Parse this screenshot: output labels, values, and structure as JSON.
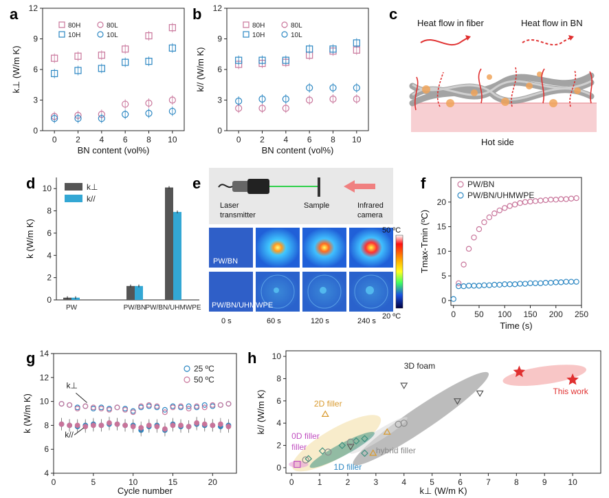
{
  "colors": {
    "pink": "#c8749a",
    "blue": "#2a86c2",
    "dark": "#555555",
    "cyan": "#33a7d4",
    "red": "#e03030",
    "orange": "#d99a2e",
    "gray": "#8a8a8a",
    "green": "#3a8f7d",
    "purple": "#c04fc0"
  },
  "panel_labels": [
    "a",
    "b",
    "c",
    "d",
    "e",
    "f",
    "g",
    "h"
  ],
  "panel_c": {
    "title_fiber": "Heat flow in fiber",
    "title_bn": "Heat flow in BN",
    "bottom": "Hot side"
  },
  "panel_e": {
    "laser": "Laser",
    "laser2": "transmitter",
    "sample": "Sample",
    "camera": "Infrared",
    "camera2": "camera",
    "row1": "PW/BN",
    "row2": "PW/BN/UHMWPE",
    "times": [
      "0 s",
      "60 s",
      "120 s",
      "240 s"
    ],
    "scale_max": "50 ºC",
    "scale_min": "20 ºC"
  },
  "chart_data": [
    {
      "id": "a",
      "type": "scatter",
      "xlabel": "BN content (vol%)",
      "ylabel": "k⊥ (W/m K)",
      "xlim": [
        -1,
        11
      ],
      "ylim": [
        0,
        12
      ],
      "xticks": [
        0,
        2,
        4,
        6,
        8,
        10
      ],
      "yticks": [
        0,
        3,
        6,
        9,
        12
      ],
      "legend": [
        "80H",
        "80L",
        "10H",
        "10L"
      ],
      "series": [
        {
          "name": "80H",
          "marker": "square",
          "color": "pink",
          "x": [
            0,
            2,
            4,
            6,
            8,
            10
          ],
          "y": [
            7.1,
            7.3,
            7.4,
            8.0,
            9.3,
            10.1
          ]
        },
        {
          "name": "80L",
          "marker": "circle",
          "color": "pink",
          "x": [
            0,
            2,
            4,
            6,
            8,
            10
          ],
          "y": [
            1.4,
            1.5,
            1.6,
            2.6,
            2.7,
            3.0
          ]
        },
        {
          "name": "10H",
          "marker": "square",
          "color": "blue",
          "x": [
            0,
            2,
            4,
            6,
            8,
            10
          ],
          "y": [
            5.6,
            5.9,
            6.1,
            6.7,
            6.8,
            8.1
          ]
        },
        {
          "name": "10L",
          "marker": "circle",
          "color": "blue",
          "x": [
            0,
            2,
            4,
            6,
            8,
            10
          ],
          "y": [
            1.2,
            1.2,
            1.2,
            1.6,
            1.7,
            1.9
          ]
        }
      ]
    },
    {
      "id": "b",
      "type": "scatter",
      "xlabel": "BN content (vol%)",
      "ylabel": "k// (W/m K)",
      "xlim": [
        -1,
        11
      ],
      "ylim": [
        0,
        12
      ],
      "xticks": [
        0,
        2,
        4,
        6,
        8,
        10
      ],
      "yticks": [
        0,
        3,
        6,
        9,
        12
      ],
      "legend": [
        "80H",
        "80L",
        "10H",
        "10L"
      ],
      "series": [
        {
          "name": "80H",
          "marker": "square",
          "color": "pink",
          "x": [
            0,
            2,
            4,
            6,
            8,
            10
          ],
          "y": [
            6.5,
            6.6,
            6.7,
            7.4,
            7.8,
            7.9
          ]
        },
        {
          "name": "80L",
          "marker": "circle",
          "color": "pink",
          "x": [
            0,
            2,
            4,
            6,
            8,
            10
          ],
          "y": [
            2.2,
            2.2,
            2.2,
            3.0,
            3.1,
            3.1
          ]
        },
        {
          "name": "10H",
          "marker": "square",
          "color": "blue",
          "x": [
            0,
            2,
            4,
            6,
            8,
            10
          ],
          "y": [
            6.9,
            6.9,
            6.9,
            8.0,
            8.0,
            8.6
          ]
        },
        {
          "name": "10L",
          "marker": "circle",
          "color": "blue",
          "x": [
            0,
            2,
            4,
            6,
            8,
            10
          ],
          "y": [
            2.9,
            3.1,
            3.1,
            4.2,
            4.2,
            4.2
          ]
        }
      ]
    },
    {
      "id": "d",
      "type": "bar",
      "categories": [
        "PW",
        "PW/BN",
        "PW/BN/UHMWPE"
      ],
      "ylabel": "k (W/m K)",
      "ylim": [
        0,
        11
      ],
      "yticks": [
        0,
        2,
        4,
        6,
        8,
        10
      ],
      "legend": [
        "k⊥",
        "k//"
      ],
      "series": [
        {
          "name": "k⊥",
          "color": "dark",
          "values": [
            0.2,
            1.25,
            10.1
          ]
        },
        {
          "name": "k//",
          "color": "cyan",
          "values": [
            0.2,
            1.25,
            7.9
          ]
        }
      ]
    },
    {
      "id": "f",
      "type": "scatter",
      "xlabel": "Time (s)",
      "ylabel": "Tmax-Tmin (ºC)",
      "xlim": [
        -5,
        250
      ],
      "ylim": [
        -1,
        25
      ],
      "xticks": [
        0,
        50,
        100,
        150,
        200,
        250
      ],
      "yticks": [
        0,
        5,
        10,
        15,
        20
      ],
      "legend": [
        "PW/BN",
        "PW/BN/UHMWPE"
      ],
      "series": [
        {
          "name": "PW/BN",
          "color": "pink",
          "x": [
            10,
            20,
            30,
            40,
            50,
            60,
            70,
            80,
            90,
            100,
            110,
            120,
            130,
            140,
            150,
            160,
            170,
            180,
            190,
            200,
            210,
            220,
            230,
            240
          ],
          "y": [
            3.5,
            7.3,
            10.5,
            12.8,
            14.5,
            15.9,
            16.9,
            17.7,
            18.3,
            18.8,
            19.2,
            19.5,
            19.8,
            20.0,
            20.1,
            20.2,
            20.3,
            20.4,
            20.5,
            20.5,
            20.6,
            20.6,
            20.7,
            20.8
          ]
        },
        {
          "name": "PW/BN/UHMWPE",
          "color": "blue",
          "x": [
            0,
            10,
            20,
            30,
            40,
            50,
            60,
            70,
            80,
            90,
            100,
            110,
            120,
            130,
            140,
            150,
            160,
            170,
            180,
            190,
            200,
            210,
            220,
            230,
            240
          ],
          "y": [
            0.3,
            2.9,
            2.9,
            3.0,
            3.0,
            3.0,
            3.1,
            3.1,
            3.2,
            3.2,
            3.3,
            3.3,
            3.3,
            3.4,
            3.4,
            3.5,
            3.5,
            3.5,
            3.6,
            3.6,
            3.7,
            3.7,
            3.8,
            3.8,
            3.8
          ]
        }
      ]
    },
    {
      "id": "g",
      "type": "scatter",
      "xlabel": "Cycle number",
      "ylabel": "k (W/m K)",
      "xlim": [
        0,
        23
      ],
      "ylim": [
        4,
        14
      ],
      "xticks": [
        0,
        5,
        10,
        15,
        20
      ],
      "yticks": [
        4,
        6,
        8,
        10,
        12,
        14
      ],
      "legend": [
        "25 ºC",
        "50 ºC"
      ],
      "annotations": [
        "k⊥",
        "k//"
      ],
      "series": [
        {
          "name": "25 ºC k⊥",
          "color": "blue",
          "x": [
            1,
            2,
            3,
            4,
            5,
            6,
            7,
            8,
            9,
            10,
            11,
            12,
            13,
            14,
            15,
            16,
            17,
            18,
            19,
            20,
            21,
            22
          ],
          "y": [
            9.8,
            9.7,
            9.5,
            9.6,
            9.4,
            9.5,
            9.4,
            9.5,
            9.4,
            9.2,
            9.5,
            9.6,
            9.5,
            9.3,
            9.6,
            9.5,
            9.6,
            9.5,
            9.7,
            9.6,
            9.7,
            9.8
          ]
        },
        {
          "name": "50 ºC k⊥",
          "color": "pink",
          "x": [
            1,
            2,
            3,
            4,
            5,
            6,
            7,
            8,
            9,
            10,
            11,
            12,
            13,
            14,
            15,
            16,
            17,
            18,
            19,
            20,
            21,
            22
          ],
          "y": [
            9.8,
            9.7,
            9.4,
            9.6,
            9.5,
            9.4,
            9.3,
            9.5,
            9.3,
            9.1,
            9.6,
            9.7,
            9.6,
            9.1,
            9.5,
            9.6,
            9.4,
            9.6,
            9.5,
            9.7,
            9.7,
            9.8
          ]
        },
        {
          "name": "25 ºC k//",
          "color": "blue",
          "x": [
            1,
            2,
            3,
            4,
            5,
            6,
            7,
            8,
            9,
            10,
            11,
            12,
            13,
            14,
            15,
            16,
            17,
            18,
            19,
            20,
            21,
            22
          ],
          "y": [
            8.1,
            8.0,
            7.9,
            8.0,
            8.1,
            8.0,
            8.1,
            8.1,
            8.0,
            8.0,
            7.6,
            7.9,
            8.0,
            7.6,
            8.1,
            7.9,
            7.9,
            8.1,
            8.0,
            8.0,
            7.9,
            8.0
          ]
        },
        {
          "name": "50 ºC k//",
          "color": "pink",
          "x": [
            1,
            2,
            3,
            4,
            5,
            6,
            7,
            8,
            9,
            10,
            11,
            12,
            13,
            14,
            15,
            16,
            17,
            18,
            19,
            20,
            21,
            22
          ],
          "y": [
            8.1,
            8.0,
            8.0,
            7.9,
            8.0,
            8.0,
            8.2,
            8.1,
            8.0,
            7.9,
            7.8,
            8.0,
            7.9,
            7.7,
            8.0,
            8.0,
            7.9,
            8.2,
            8.1,
            8.0,
            8.1,
            7.9
          ]
        }
      ]
    },
    {
      "id": "h",
      "type": "scatter",
      "xlabel": "k⊥ (W/m K)",
      "ylabel": "k// (W/m K)",
      "xlim": [
        -0.2,
        11
      ],
      "ylim": [
        -0.5,
        10.5
      ],
      "xticks": [
        0,
        1,
        2,
        3,
        4,
        5,
        6,
        7,
        8,
        9,
        10
      ],
      "yticks": [
        0,
        2,
        4,
        6,
        8,
        10
      ],
      "groups": [
        "3D foam",
        "2D filler",
        "0D filler",
        "1D filler",
        "hybrid filler",
        "This work"
      ],
      "series": [
        {
          "name": "3D foam",
          "marker": "tri-down",
          "color": "dark",
          "x": [
            4.0,
            5.9,
            6.7,
            2.1
          ],
          "y": [
            7.4,
            6.0,
            6.7,
            1.9
          ]
        },
        {
          "name": "2D filler",
          "marker": "tri-up",
          "color": "orange",
          "x": [
            1.2,
            3.4,
            2.9
          ],
          "y": [
            4.8,
            3.2,
            1.3
          ]
        },
        {
          "name": "0D filler",
          "marker": "square",
          "color": "purple",
          "x": [
            0.2
          ],
          "y": [
            0.3
          ]
        },
        {
          "name": "1D filler",
          "marker": "diamond",
          "color": "green",
          "x": [
            0.6,
            1.1,
            1.8,
            2.3,
            2.6,
            2.6
          ],
          "y": [
            0.8,
            1.5,
            2.0,
            2.4,
            2.6,
            1.3
          ]
        },
        {
          "name": "hybrid filler",
          "marker": "circle",
          "color": "gray",
          "x": [
            0.5,
            1.3,
            2.1,
            3.8,
            4.0
          ],
          "y": [
            0.7,
            1.4,
            2.3,
            3.9,
            4.0
          ]
        },
        {
          "name": "This work",
          "marker": "star",
          "color": "red",
          "x": [
            8.1,
            10.0
          ],
          "y": [
            8.6,
            7.9
          ]
        }
      ]
    }
  ]
}
